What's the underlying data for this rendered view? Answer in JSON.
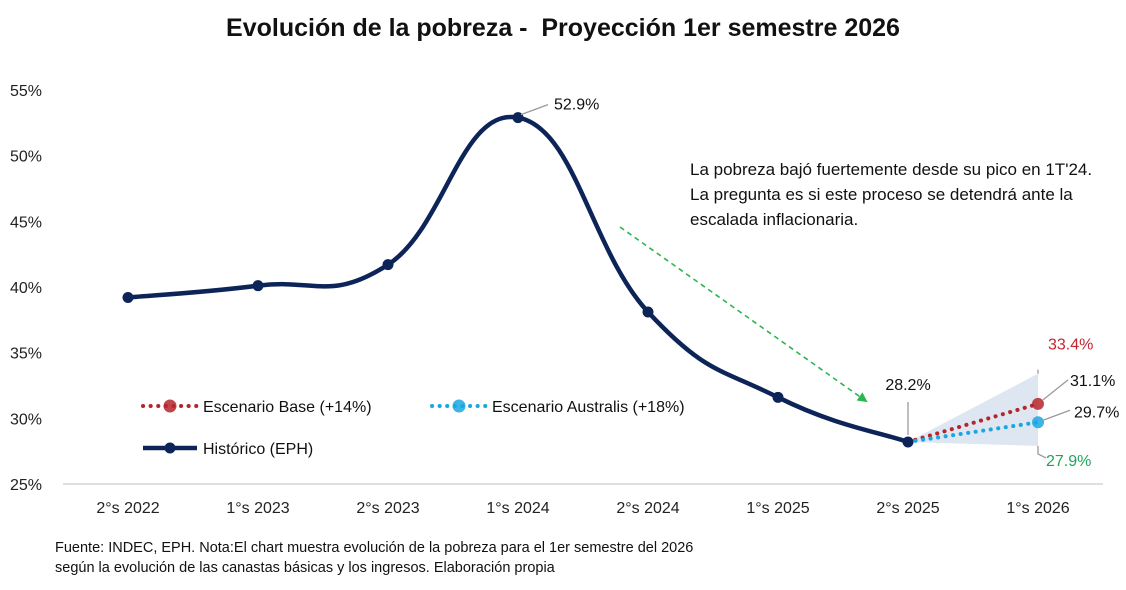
{
  "chart_data": {
    "type": "line",
    "title": "Evolución de la pobreza -  Proyección 1er semestre 2026",
    "categories": [
      "2°s 2022",
      "1°s 2023",
      "2°s 2023",
      "1°s 2024",
      "2°s 2024",
      "1°s 2025",
      "2°s 2025",
      "1°s 2026"
    ],
    "ylim": [
      25,
      55
    ],
    "yticks": [
      25,
      30,
      35,
      40,
      45,
      50,
      55
    ],
    "ytick_labels": [
      "25%",
      "30%",
      "35%",
      "40%",
      "45%",
      "50%",
      "55%"
    ],
    "grid": false,
    "series": [
      {
        "name": "Histórico (EPH)",
        "color": "#0d2459",
        "style": "solid",
        "values": [
          39.2,
          40.1,
          41.7,
          52.9,
          38.1,
          31.6,
          28.2,
          null
        ]
      },
      {
        "name": "Escenario Base (+14%)",
        "color": "#b5262b",
        "style": "dotted",
        "values": [
          null,
          null,
          null,
          null,
          null,
          null,
          28.2,
          31.1
        ]
      },
      {
        "name": "Escenario Australis (+18%)",
        "color": "#1aa7e0",
        "style": "dotted",
        "values": [
          null,
          null,
          null,
          null,
          null,
          null,
          28.2,
          29.7
        ]
      }
    ],
    "projection_band": {
      "at": "1°s 2026",
      "from": "2°s 2025",
      "high": 33.4,
      "low": 27.9,
      "color": "#dde6f1"
    },
    "data_labels": [
      {
        "category": "1°s 2024",
        "value": 52.9,
        "text": "52.9%",
        "color": "#111111"
      },
      {
        "category": "2°s 2025",
        "value": 28.2,
        "text": "28.2%",
        "color": "#111111"
      },
      {
        "category": "1°s 2026",
        "value": 33.4,
        "text": "33.4%",
        "color": "#c4262e"
      },
      {
        "category": "1°s 2026",
        "value": 31.1,
        "text": "31.1%",
        "color": "#111111"
      },
      {
        "category": "1°s 2026",
        "value": 29.7,
        "text": "29.7%",
        "color": "#111111"
      },
      {
        "category": "1°s 2026",
        "value": 27.9,
        "text": "27.9%",
        "color": "#1fa55a"
      }
    ],
    "legend_position": "bottom-left",
    "trend_arrow_color": "#2db552"
  },
  "annotation": "La pobreza bajó fuertemente desde su pico en 1T'24. La pregunta es si este proceso se detendrá ante la escalada inflacionaria.",
  "source": "Fuente: INDEC,  EPH. Nota:El chart muestra evolución de la pobreza para el 1er semestre del 2026 según la evolución de las canastas básicas y los ingresos. Elaboración propia"
}
